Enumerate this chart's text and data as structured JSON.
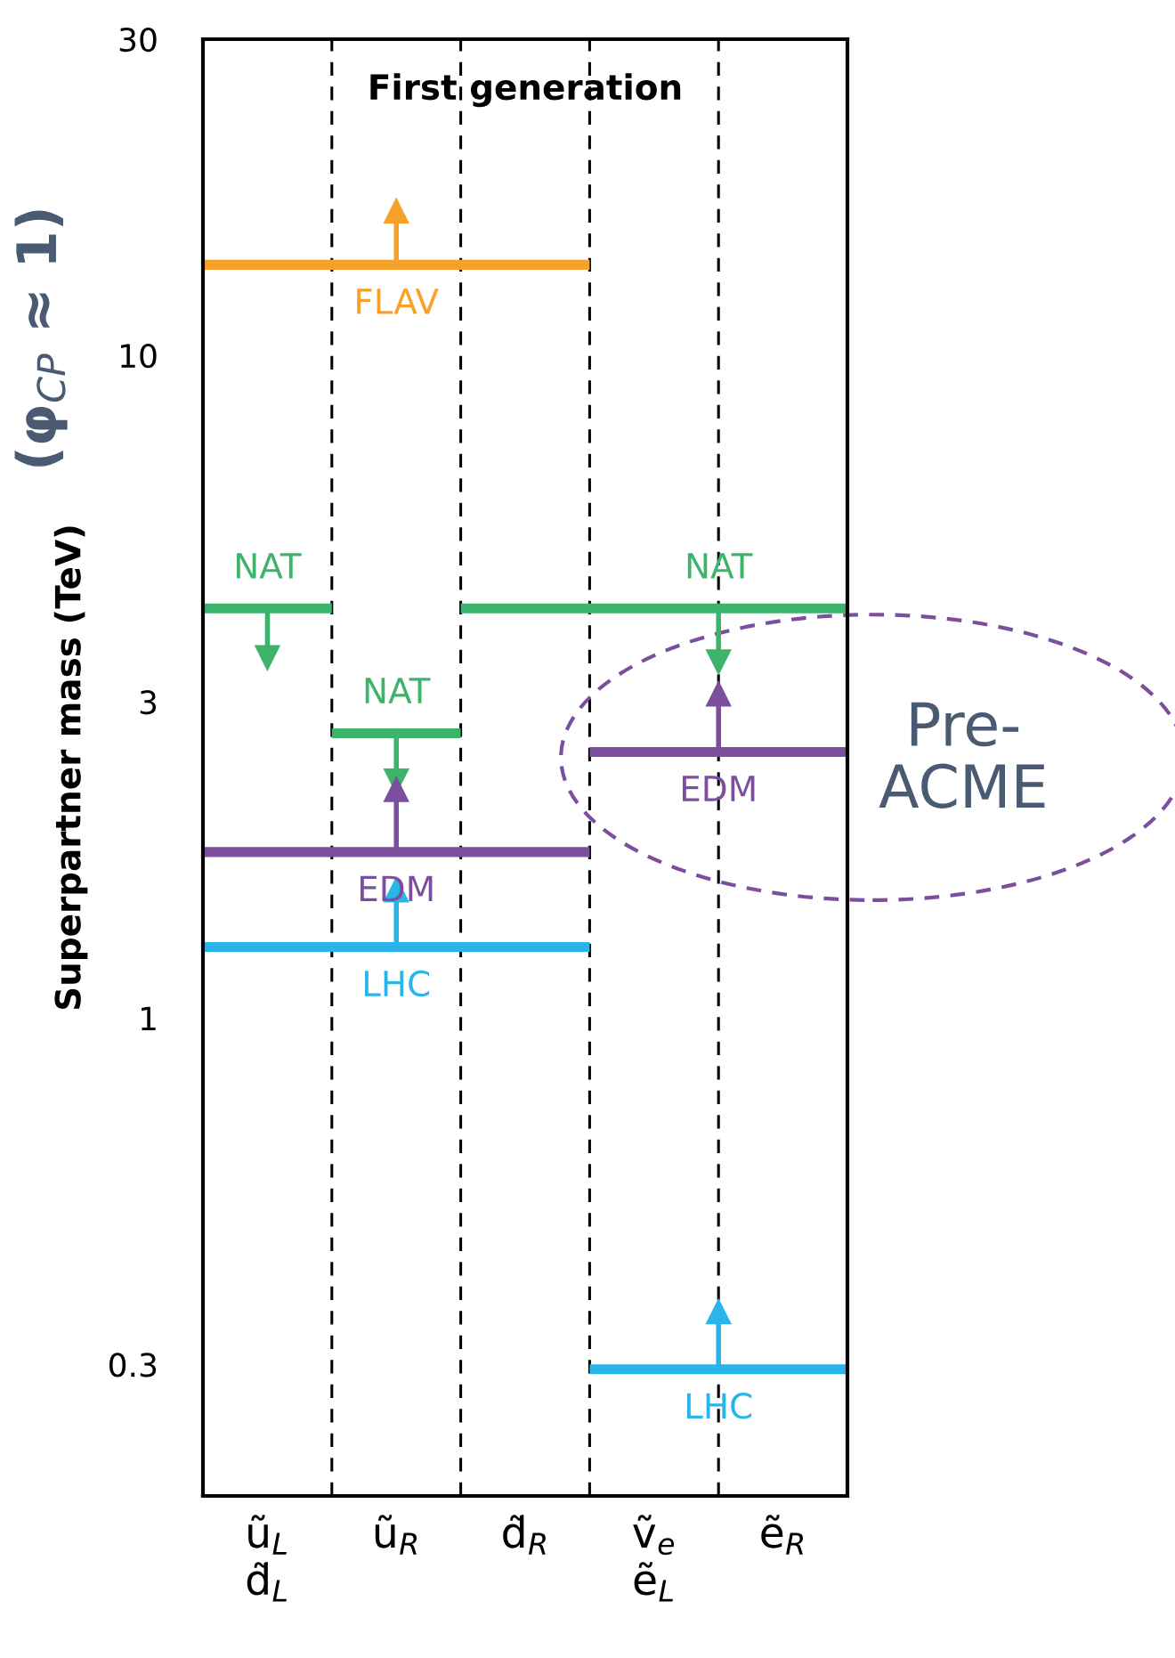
{
  "chart_data": {
    "type": "line",
    "title": "First generation",
    "ylabel": "Superpartner mass (TeV)",
    "categories": [
      null,
      "ũ$_{L}$\nd̃$_{L}$",
      null,
      "ũ$_{R}$",
      null,
      "d̃$_{R}$",
      null,
      "ṽ$_{e}$\nẽ$_{L}$",
      null,
      "ẽ$_{R}$",
      null
    ],
    "series": [
      {
        "name": "FLAV",
        "color": "#f5a12a",
        "values": [
          13.7,
          13.7,
          13.7,
          13.7,
          13.7,
          13.7,
          13.7,
          null,
          null,
          null,
          null
        ],
        "errors": [
          null,
          null,
          null,
          [
            13.7,
            16.5
          ],
          null,
          null,
          null,
          null,
          null,
          null,
          null
        ]
      },
      {
        "name": "NAT",
        "color": "#3db36b",
        "values": [
          4.15,
          4.15,
          4.15,
          null,
          null,
          null,
          null,
          null,
          null,
          null,
          null
        ],
        "errors": [
          null,
          [
            3.5,
            4.15
          ],
          null,
          null,
          null,
          null,
          null,
          null,
          null,
          null,
          null
        ]
      },
      {
        "name": "NAT",
        "color": "#3db36b",
        "values": [
          null,
          null,
          2.69,
          2.69,
          2.69,
          null,
          null,
          null,
          null,
          null,
          null
        ],
        "errors": [
          null,
          null,
          null,
          [
            2.28,
            2.69
          ],
          null,
          null,
          null,
          null,
          null,
          null,
          null
        ]
      },
      {
        "name": "NAT",
        "color": "#3db36b",
        "values": [
          null,
          null,
          null,
          null,
          4.15,
          4.15,
          4.15,
          4.15,
          4.15,
          4.15,
          4.15
        ],
        "errors": [
          null,
          null,
          null,
          null,
          null,
          null,
          null,
          null,
          [
            3.45,
            4.15
          ],
          null,
          null
        ]
      },
      {
        "name": "EDM",
        "color": "#7b4f9e",
        "values": [
          1.78,
          1.78,
          1.78,
          1.78,
          1.78,
          1.78,
          1.78,
          null,
          null,
          null,
          null
        ],
        "errors": [
          null,
          null,
          null,
          [
            1.78,
            2.21
          ],
          null,
          null,
          null,
          null,
          null,
          null,
          null
        ]
      },
      {
        "name": "EDM",
        "color": "#7b4f9e",
        "values": [
          null,
          null,
          null,
          null,
          null,
          null,
          2.52,
          2.52,
          2.52,
          2.52,
          2.52
        ],
        "errors": [
          null,
          null,
          null,
          null,
          null,
          null,
          null,
          null,
          [
            2.52,
            3.08
          ],
          null,
          null
        ]
      },
      {
        "name": "LHC",
        "color": "#29b5e8",
        "values": [
          1.28,
          1.28,
          1.28,
          1.28,
          1.28,
          1.28,
          1.28,
          null,
          null,
          null,
          null
        ],
        "errors": [
          null,
          null,
          null,
          [
            1.28,
            1.56
          ],
          null,
          null,
          null,
          null,
          null,
          null,
          null
        ]
      },
      {
        "name": "LHC",
        "color": "#29b5e8",
        "values": [
          null,
          null,
          null,
          null,
          null,
          null,
          0.295,
          0.295,
          0.295,
          0.295,
          0.295
        ],
        "errors": [
          null,
          null,
          null,
          null,
          null,
          null,
          null,
          null,
          [
            0.295,
            0.36
          ],
          null,
          null
        ]
      }
    ],
    "grid": "x",
    "annotations": [
      "(φ$_{CP}$ ≈ 1)",
      "Pre-\nACME"
    ],
    "log": true,
    "ylim": [
      0.19,
      30
    ],
    "yticks": [
      0.3,
      1,
      3,
      10,
      30
    ],
    "legend": false
  }
}
